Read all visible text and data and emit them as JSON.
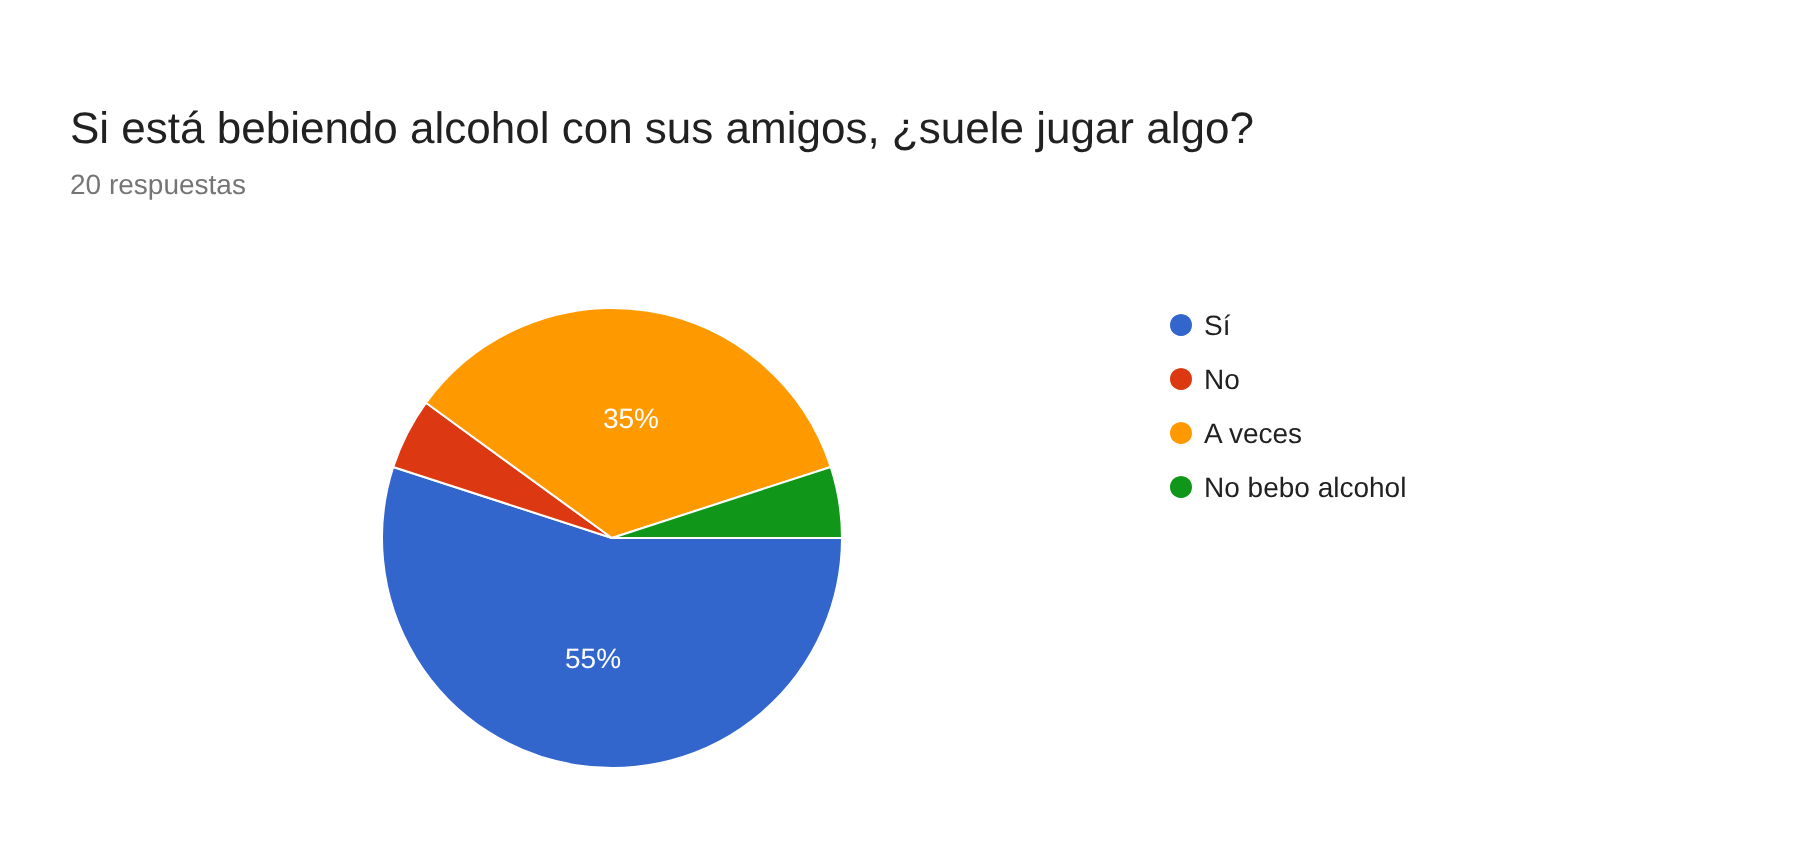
{
  "chart_data": {
    "type": "pie",
    "title": "Si está bebiendo alcohol con sus amigos, ¿suele jugar algo?",
    "subtitle": "20 respuestas",
    "categories": [
      "Sí",
      "No",
      "A veces",
      "No bebo alcohol"
    ],
    "values": [
      55,
      5,
      35,
      5
    ],
    "colors": [
      "#3366cc",
      "#dc3912",
      "#ff9900",
      "#109618"
    ],
    "value_labels": [
      "55%",
      null,
      "35%",
      null
    ],
    "legend": "right"
  }
}
